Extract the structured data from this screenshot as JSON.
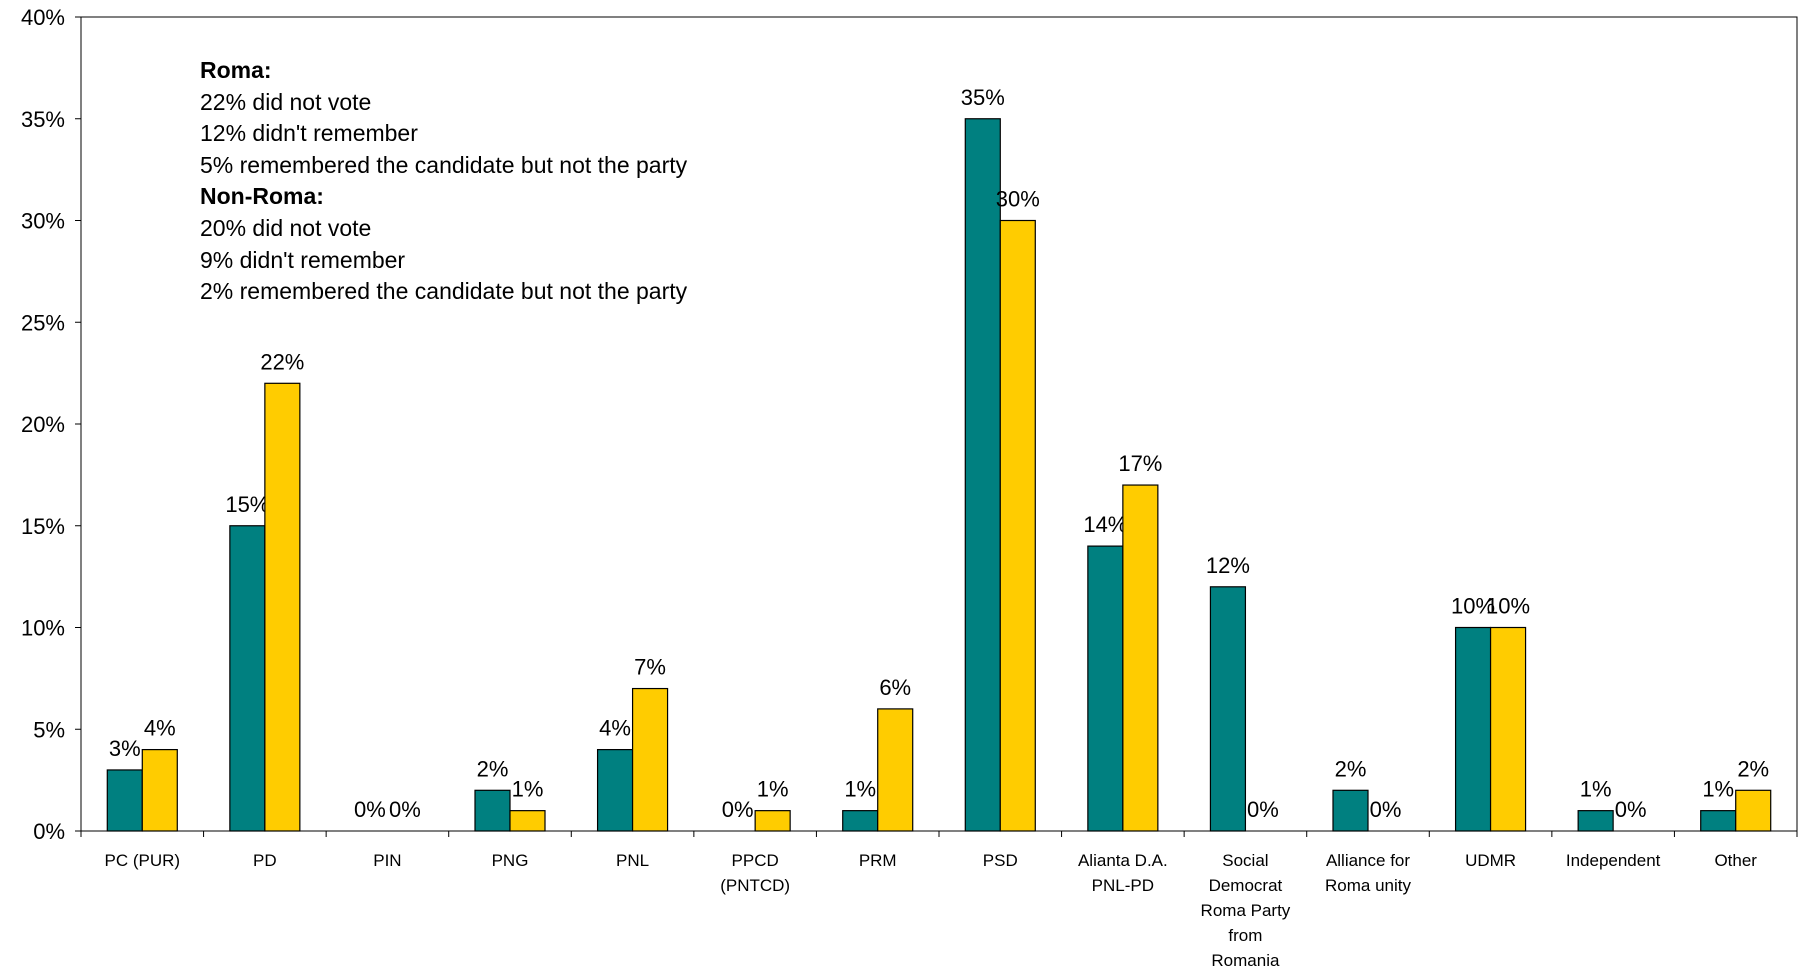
{
  "chart_data": {
    "type": "bar",
    "ylim": [
      0,
      40
    ],
    "yticks": [
      "0%",
      "5%",
      "10%",
      "15%",
      "20%",
      "25%",
      "30%",
      "35%",
      "40%"
    ],
    "grid": false,
    "categories": [
      [
        "PC (PUR)"
      ],
      [
        "PD"
      ],
      [
        "PIN"
      ],
      [
        "PNG"
      ],
      [
        "PNL"
      ],
      [
        "PPCD",
        "(PNTCD)"
      ],
      [
        "PRM"
      ],
      [
        "PSD"
      ],
      [
        "Alianta D.A.",
        "PNL-PD"
      ],
      [
        "Social",
        "Democrat",
        "Roma Party",
        "from",
        "Romania"
      ],
      [
        "Alliance for",
        "Roma unity"
      ],
      [
        "UDMR"
      ],
      [
        "Independent"
      ],
      [
        "Other"
      ]
    ],
    "series": [
      {
        "color": "#008080",
        "values": [
          3,
          15,
          0,
          2,
          4,
          0,
          1,
          35,
          14,
          12,
          2,
          10,
          1,
          1
        ],
        "labels": [
          "3%",
          "15%",
          "0%",
          "2%",
          "4%",
          "0%",
          "1%",
          "35%",
          "14%",
          "12%",
          "2%",
          "10%",
          "1%",
          "1%"
        ]
      },
      {
        "color": "#FFCC00",
        "values": [
          4,
          22,
          0,
          1,
          7,
          1,
          6,
          30,
          17,
          0,
          0,
          10,
          0,
          2
        ],
        "labels": [
          "4%",
          "22%",
          "0%",
          "1%",
          "7%",
          "1%",
          "6%",
          "30%",
          "17%",
          "0%",
          "0%",
          "10%",
          "0%",
          "2%"
        ]
      }
    ]
  },
  "note": {
    "roma_header": "Roma:",
    "roma_lines": [
      "22% did not vote",
      "12% didn't remember",
      "5% remembered the candidate but not the party"
    ],
    "nonroma_header": "Non-Roma:",
    "nonroma_lines": [
      "20% did not vote",
      "9% didn't remember",
      "2% remembered the candidate but not the party"
    ]
  }
}
